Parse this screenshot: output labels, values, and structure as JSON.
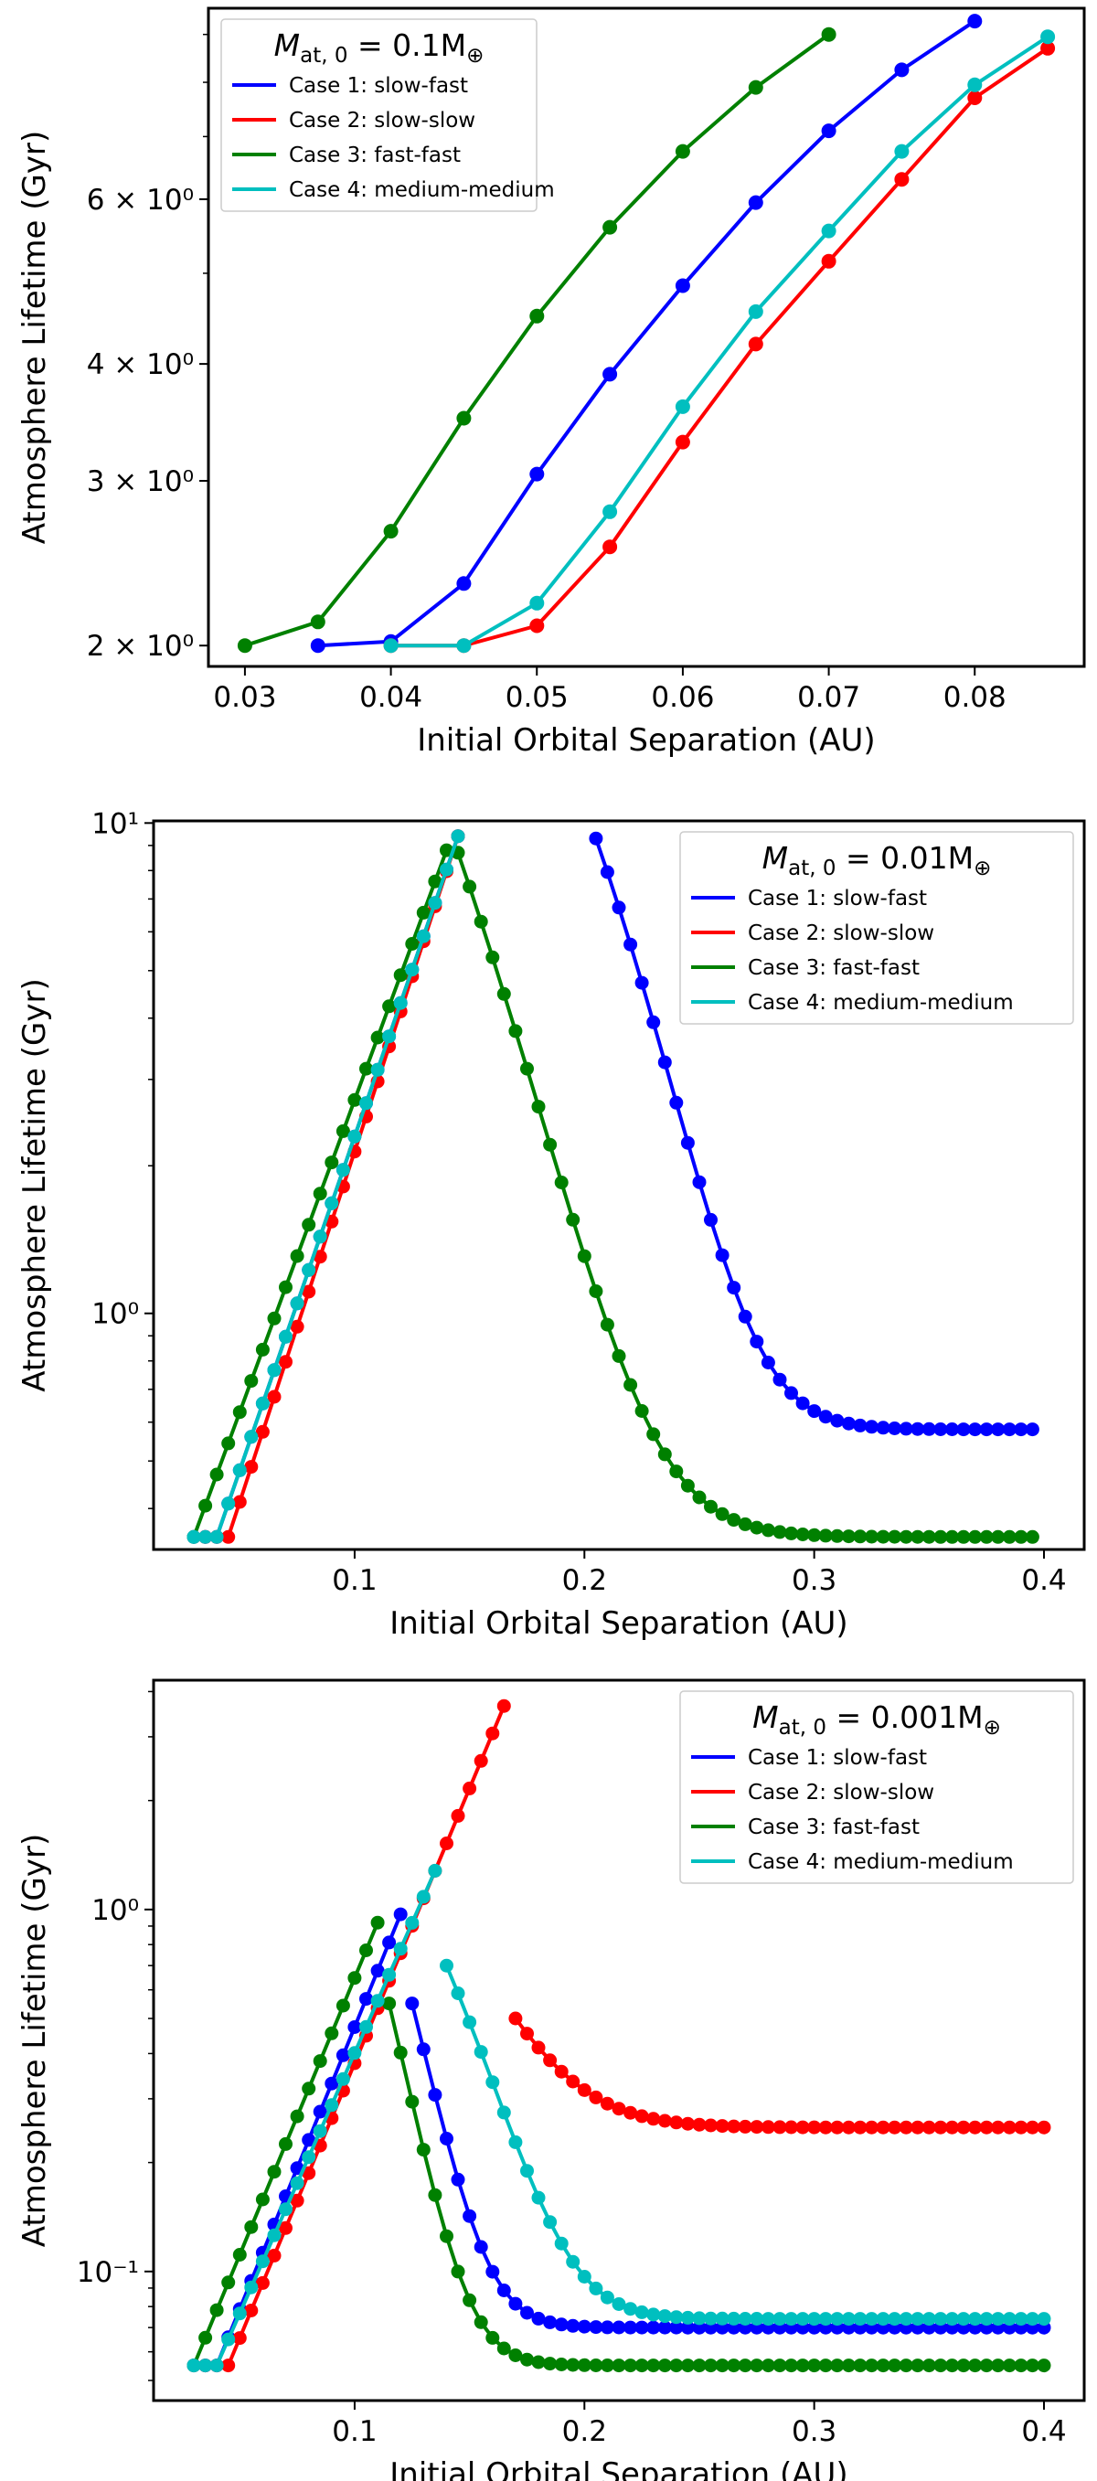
{
  "chart_data": [
    {
      "type": "line",
      "legend_title_base": "M",
      "legend_title_sub": "at, 0",
      "legend_title_value": " = 0.1M",
      "legend_title_symbol": "⊕",
      "xlabel": "Initial Orbital Separation (AU)",
      "ylabel": "Atmosphere Lifetime (Gyr)",
      "yscale": "log",
      "xlim": [
        0.0275,
        0.0875
      ],
      "ylim": [
        1.9,
        9.6
      ],
      "grid": false,
      "legend_position": "top-left",
      "x_ticks": [
        {
          "value": 0.03,
          "label": "0.03"
        },
        {
          "value": 0.04,
          "label": "0.04"
        },
        {
          "value": 0.05,
          "label": "0.05"
        },
        {
          "value": 0.06,
          "label": "0.06"
        },
        {
          "value": 0.07,
          "label": "0.07"
        },
        {
          "value": 0.08,
          "label": "0.08"
        }
      ],
      "y_ticks": [
        {
          "value": 2,
          "label": "2 × 10⁰"
        },
        {
          "value": 3,
          "label": "3 × 10⁰"
        },
        {
          "value": 4,
          "label": "4 × 10⁰"
        },
        {
          "value": 6,
          "label": "6 × 10⁰"
        }
      ],
      "y_minor_ticks": [
        5,
        7,
        8,
        9
      ],
      "series": [
        {
          "name": "Case 1: slow-fast",
          "color": "#0000ff",
          "x": [
            0.035,
            0.04,
            0.045,
            0.05,
            0.055,
            0.06,
            0.065,
            0.07,
            0.075,
            0.08
          ],
          "y": [
            2.0,
            2.02,
            2.33,
            3.05,
            3.9,
            4.85,
            5.95,
            7.1,
            8.25,
            9.3
          ]
        },
        {
          "name": "Case 2: slow-slow",
          "color": "#ff0000",
          "x": [
            0.04,
            0.045,
            0.05,
            0.055,
            0.06,
            0.065,
            0.07,
            0.075,
            0.08,
            0.085
          ],
          "y": [
            2.0,
            2.0,
            2.1,
            2.55,
            3.3,
            4.2,
            5.15,
            6.3,
            7.7,
            8.7
          ]
        },
        {
          "name": "Case 3: fast-fast",
          "color": "#008000",
          "x": [
            0.03,
            0.035,
            0.04,
            0.045,
            0.05,
            0.055,
            0.06,
            0.065,
            0.07
          ],
          "y": [
            2.0,
            2.12,
            2.65,
            3.5,
            4.5,
            5.6,
            6.75,
            7.9,
            9.0
          ]
        },
        {
          "name": "Case 4: medium-medium",
          "color": "#00bfbf",
          "x": [
            0.04,
            0.045,
            0.05,
            0.055,
            0.06,
            0.065,
            0.07,
            0.075,
            0.08,
            0.085
          ],
          "y": [
            2.0,
            2.0,
            2.22,
            2.78,
            3.6,
            4.55,
            5.55,
            6.75,
            7.95,
            8.95
          ]
        }
      ]
    },
    {
      "type": "line",
      "legend_title_base": "M",
      "legend_title_sub": "at, 0",
      "legend_title_value": " = 0.01M",
      "legend_title_symbol": "⊕",
      "xlabel": "Initial Orbital Separation (AU)",
      "ylabel": "Atmosphere Lifetime (Gyr)",
      "yscale": "log",
      "xlim": [
        0.0125,
        0.4175
      ],
      "ylim": [
        0.33,
        10.1
      ],
      "grid": false,
      "legend_position": "top-right",
      "x_ticks": [
        {
          "value": 0.1,
          "label": "0.1"
        },
        {
          "value": 0.2,
          "label": "0.2"
        },
        {
          "value": 0.3,
          "label": "0.3"
        },
        {
          "value": 0.4,
          "label": "0.4"
        }
      ],
      "y_ticks": [
        {
          "value": 1,
          "label": "10⁰"
        },
        {
          "value": 10,
          "label": "10¹"
        }
      ],
      "y_minor_ticks": [
        0.4,
        0.5,
        0.6,
        0.7,
        0.8,
        0.9,
        2,
        3,
        4,
        5,
        6,
        7,
        8,
        9
      ],
      "series": [
        {
          "name": "Case 1: slow-fast",
          "color": "#0000ff",
          "rise": {
            "x_start": 0.03,
            "x_floor_end": 0.04,
            "x_peak": 0.145,
            "y_floor": 0.35,
            "y_peak": 9.4
          },
          "tail": {
            "x_start": 0.205,
            "x_end": 0.395,
            "y_start": 9.3,
            "y_end": 0.58,
            "tau": 0.0305,
            "shape": 2.2
          }
        },
        {
          "name": "Case 2: slow-slow",
          "color": "#ff0000",
          "rise": {
            "x_start": 0.035,
            "x_floor_end": 0.045,
            "x_peak": 0.145,
            "y_floor": 0.35,
            "y_peak": 9.4
          }
        },
        {
          "name": "Case 3: fast-fast",
          "color": "#008000",
          "rise": {
            "x_start": 0.03,
            "x_floor_end": 0.03,
            "x_peak": 0.14,
            "y_floor": 0.35,
            "y_peak": 8.8
          },
          "tail": {
            "x_start": 0.145,
            "x_end": 0.395,
            "y_start": 8.7,
            "y_end": 0.35,
            "tau": 0.0305,
            "shape": 3.0
          }
        },
        {
          "name": "Case 4: medium-medium",
          "color": "#00bfbf",
          "rise": {
            "x_start": 0.03,
            "x_floor_end": 0.04,
            "x_peak": 0.145,
            "y_floor": 0.35,
            "y_peak": 9.4
          }
        }
      ]
    },
    {
      "type": "line",
      "legend_title_base": "M",
      "legend_title_sub": "at, 0",
      "legend_title_value": " = 0.001M",
      "legend_title_symbol": "⊕",
      "xlabel": "Initial Orbital Separation (AU)",
      "ylabel": "Atmosphere Lifetime (Gyr)",
      "yscale": "log",
      "xlim": [
        0.0125,
        0.4175
      ],
      "ylim": [
        0.044,
        4.3
      ],
      "grid": false,
      "legend_position": "top-right",
      "x_ticks": [
        {
          "value": 0.1,
          "label": "0.1"
        },
        {
          "value": 0.2,
          "label": "0.2"
        },
        {
          "value": 0.3,
          "label": "0.3"
        },
        {
          "value": 0.4,
          "label": "0.4"
        }
      ],
      "y_ticks": [
        {
          "value": 0.1,
          "label": "10⁻¹"
        },
        {
          "value": 1,
          "label": "10⁰"
        }
      ],
      "y_minor_ticks": [
        0.05,
        0.06,
        0.07,
        0.08,
        0.09,
        0.2,
        0.3,
        0.4,
        0.5,
        0.6,
        0.7,
        0.8,
        0.9,
        2,
        3,
        4
      ],
      "series": [
        {
          "name": "Case 1: slow-fast",
          "color": "#0000ff",
          "rise": {
            "x_start": 0.03,
            "x_floor_end": 0.04,
            "x_peak": 0.12,
            "y_floor": 0.055,
            "y_peak": 0.97
          },
          "tail": {
            "x_start": 0.125,
            "x_end": 0.4,
            "y_start": 0.55,
            "y_end": 0.07,
            "tau": 0.015,
            "shape": 3.5
          }
        },
        {
          "name": "Case 2: slow-slow",
          "color": "#ff0000",
          "rise": {
            "x_start": 0.035,
            "x_floor_end": 0.045,
            "x_peak": 0.165,
            "y_floor": 0.055,
            "y_peak": 3.65
          },
          "tail": {
            "x_start": 0.17,
            "x_end": 0.4,
            "y_start": 0.5,
            "y_end": 0.25,
            "tau": 0.025,
            "shape": 3.5
          }
        },
        {
          "name": "Case 3: fast-fast",
          "color": "#008000",
          "rise": {
            "x_start": 0.03,
            "x_floor_end": 0.03,
            "x_peak": 0.11,
            "y_floor": 0.055,
            "y_peak": 0.92
          },
          "tail": {
            "x_start": 0.115,
            "x_end": 0.4,
            "y_start": 0.55,
            "y_end": 0.055,
            "tau": 0.0145,
            "shape": 3.6
          }
        },
        {
          "name": "Case 4: medium-medium",
          "color": "#00bfbf",
          "rise": {
            "x_start": 0.03,
            "x_floor_end": 0.04,
            "x_peak": 0.135,
            "y_floor": 0.055,
            "y_peak": 1.28
          },
          "tail": {
            "x_start": 0.14,
            "x_end": 0.4,
            "y_start": 0.7,
            "y_end": 0.074,
            "tau": 0.026,
            "shape": 2.3
          }
        }
      ]
    }
  ]
}
